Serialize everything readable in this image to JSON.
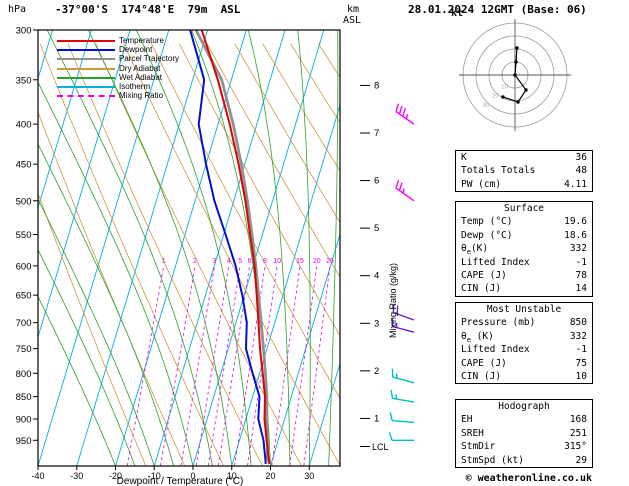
{
  "header": {
    "pressure_unit": "hPa",
    "location": "-37°00'S  174°48'E  79m  ASL",
    "datetime": "28.01.2024 12GMT (Base: 06)",
    "km_label": "km",
    "asl_label": "ASL"
  },
  "axes": {
    "pressure_ticks": [
      300,
      350,
      400,
      450,
      500,
      550,
      600,
      650,
      700,
      750,
      800,
      850,
      900,
      950
    ],
    "temp_ticks": [
      -40,
      -30,
      -20,
      -10,
      0,
      10,
      20,
      30
    ],
    "xlabel": "Dewpoint / Temperature (°C)",
    "km_ticks": [
      1,
      2,
      3,
      4,
      5,
      6,
      7,
      8
    ],
    "lcl_label": "LCL",
    "mixing_ratio_label": "Mixing Ratio (g/kg)",
    "mixing_ratio_values": [
      1,
      2,
      3,
      4,
      5,
      6,
      8,
      10,
      15,
      20,
      25
    ]
  },
  "legend": [
    {
      "label": "Temperature",
      "color": "#e00000",
      "dash": ""
    },
    {
      "label": "Dewpoint",
      "color": "#0010d0",
      "dash": ""
    },
    {
      "label": "Parcel Trajectory",
      "color": "#909090",
      "dash": ""
    },
    {
      "label": "Dry Adiabat",
      "color": "#cc9a3d",
      "dash": ""
    },
    {
      "label": "Wet Adiabat",
      "color": "#2ca02c",
      "dash": ""
    },
    {
      "label": "Isotherm",
      "color": "#00b0e0",
      "dash": ""
    },
    {
      "label": "Mixing Ratio",
      "color": "#e800e8",
      "dash": "3,3"
    }
  ],
  "hodograph": {
    "unit_label": "kt",
    "ring_labels": [
      10,
      20,
      30
    ]
  },
  "chart_data": {
    "type": "skewt-sounding",
    "pressure_range_hpa": [
      300,
      1013
    ],
    "temp_range_c": [
      -40,
      38
    ],
    "lcl_pressure": 965,
    "colors": {
      "isotherm": "#00b0e0",
      "dry_adiabat": "#cc9a3d",
      "wet_adiabat": "#2ca02c",
      "mixing_ratio": "#e800e8"
    },
    "series": [
      {
        "name": "Temperature",
        "color": "#e00000",
        "width": 2,
        "points": [
          [
            1008,
            19.6
          ],
          [
            1000,
            19.2
          ],
          [
            950,
            17.0
          ],
          [
            900,
            14.8
          ],
          [
            850,
            13.2
          ],
          [
            800,
            10.8
          ],
          [
            750,
            8.2
          ],
          [
            700,
            5.8
          ],
          [
            650,
            3.2
          ],
          [
            600,
            0.4
          ],
          [
            550,
            -3.2
          ],
          [
            500,
            -7.0
          ],
          [
            450,
            -11.6
          ],
          [
            400,
            -17.0
          ],
          [
            350,
            -23.5
          ],
          [
            300,
            -31.5
          ]
        ]
      },
      {
        "name": "Dewpoint",
        "color": "#0010d0",
        "width": 2,
        "points": [
          [
            1008,
            18.6
          ],
          [
            1000,
            18.3
          ],
          [
            950,
            16.2
          ],
          [
            900,
            13.2
          ],
          [
            850,
            11.8
          ],
          [
            800,
            8.2
          ],
          [
            750,
            4.6
          ],
          [
            700,
            2.8
          ],
          [
            650,
            -0.5
          ],
          [
            600,
            -4.5
          ],
          [
            550,
            -9.5
          ],
          [
            500,
            -15.0
          ],
          [
            450,
            -20.0
          ],
          [
            400,
            -25.0
          ],
          [
            350,
            -27.0
          ],
          [
            300,
            -34.5
          ]
        ]
      },
      {
        "name": "Parcel Trajectory",
        "color": "#909090",
        "width": 2.8,
        "points": [
          [
            1008,
            19.6
          ],
          [
            990,
            18.4
          ],
          [
            960,
            17.6
          ],
          [
            900,
            15.4
          ],
          [
            850,
            13.7
          ],
          [
            800,
            11.5
          ],
          [
            750,
            9.1
          ],
          [
            700,
            6.5
          ],
          [
            650,
            3.7
          ],
          [
            600,
            0.7
          ],
          [
            550,
            -2.7
          ],
          [
            500,
            -6.5
          ],
          [
            450,
            -10.9
          ],
          [
            400,
            -16.1
          ],
          [
            350,
            -22.5
          ],
          [
            300,
            -33.0
          ]
        ]
      }
    ],
    "wind_barbs": [
      {
        "pressure": 400,
        "dir": 305,
        "speed_kt": 35,
        "color": "#ff00ff"
      },
      {
        "pressure": 500,
        "dir": 305,
        "speed_kt": 25,
        "color": "#ff00ff"
      },
      {
        "pressure": 695,
        "dir": 290,
        "speed_kt": 20,
        "color": "#6a22cc"
      },
      {
        "pressure": 718,
        "dir": 285,
        "speed_kt": 15,
        "color": "#6a22cc"
      },
      {
        "pressure": 820,
        "dir": 285,
        "speed_kt": 15,
        "color": "#00c0c0"
      },
      {
        "pressure": 862,
        "dir": 280,
        "speed_kt": 15,
        "color": "#00c0c0"
      },
      {
        "pressure": 908,
        "dir": 275,
        "speed_kt": 10,
        "color": "#00c0c0"
      },
      {
        "pressure": 950,
        "dir": 270,
        "speed_kt": 10,
        "color": "#00c0c0"
      }
    ],
    "hodograph_trace": [
      [
        2,
        -27
      ],
      [
        1,
        -13
      ],
      [
        0,
        0
      ],
      [
        11,
        15
      ],
      [
        3,
        27
      ],
      [
        -12,
        22
      ]
    ]
  },
  "tables": [
    {
      "title": null,
      "rows": [
        [
          "K",
          "36"
        ],
        [
          "Totals Totals",
          "48"
        ],
        [
          "PW (cm)",
          "4.11"
        ]
      ]
    },
    {
      "title": "Surface",
      "rows": [
        [
          "Temp (°C)",
          "19.6"
        ],
        [
          "Dewp (°C)",
          "18.6"
        ],
        [
          "θ_e(K)",
          "332"
        ],
        [
          "Lifted Index",
          "-1"
        ],
        [
          "CAPE (J)",
          "78"
        ],
        [
          "CIN (J)",
          "14"
        ]
      ]
    },
    {
      "title": "Most Unstable",
      "rows": [
        [
          "Pressure (mb)",
          "850"
        ],
        [
          "θ_e (K)",
          "332"
        ],
        [
          "Lifted Index",
          "-1"
        ],
        [
          "CAPE (J)",
          "75"
        ],
        [
          "CIN (J)",
          "10"
        ]
      ]
    },
    {
      "title": "Hodograph",
      "rows": [
        [
          "EH",
          "168"
        ],
        [
          "SREH",
          "251"
        ],
        [
          "StmDir",
          "315°"
        ],
        [
          "StmSpd (kt)",
          "29"
        ]
      ]
    }
  ],
  "copyright": "© weatheronline.co.uk"
}
